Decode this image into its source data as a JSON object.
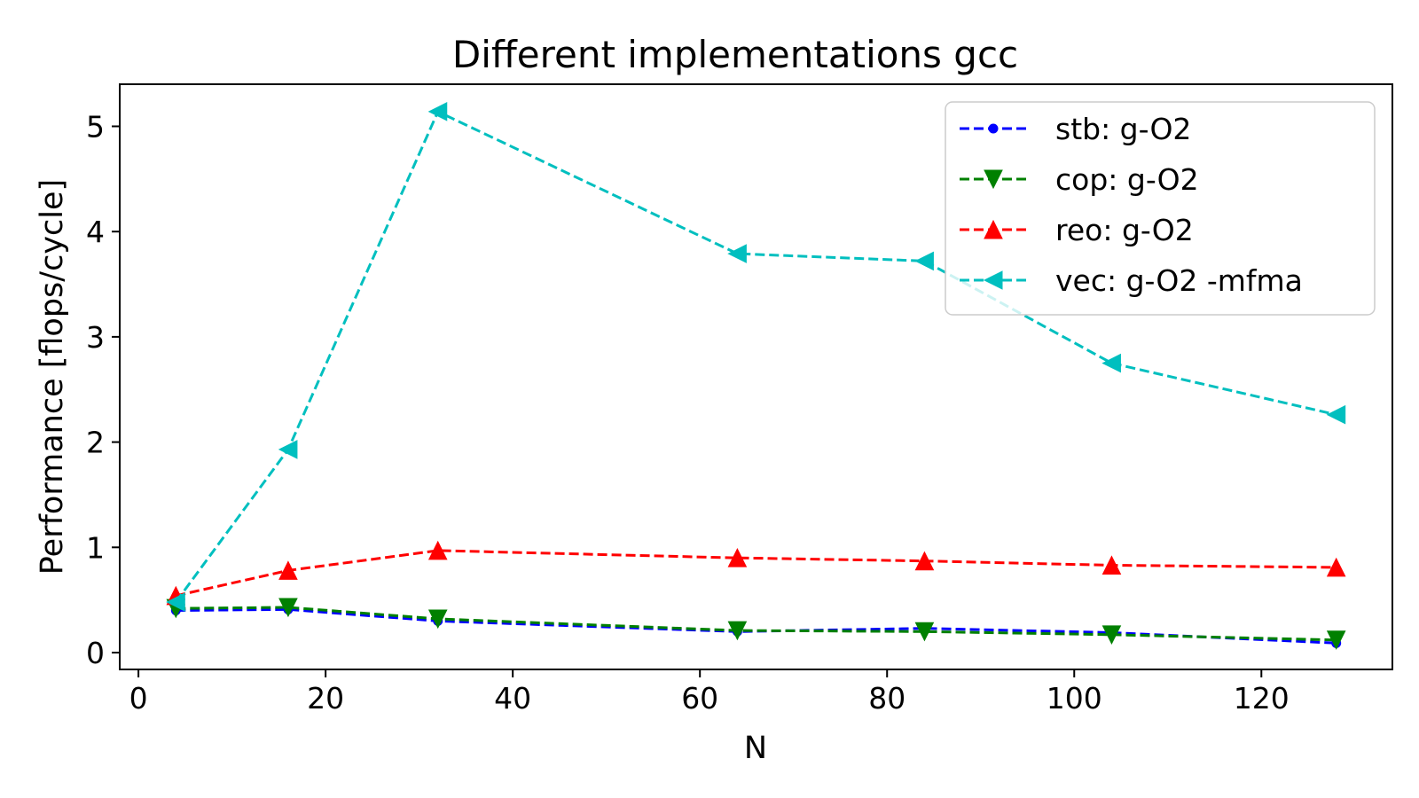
{
  "chart_data": {
    "type": "line",
    "title": "Different implementations gcc",
    "xlabel": "N",
    "ylabel": "Performance [flops/cycle]",
    "xlim": [
      -2,
      134
    ],
    "ylim": [
      -0.16,
      5.4
    ],
    "xticks": [
      0,
      20,
      40,
      60,
      80,
      100,
      120
    ],
    "yticks": [
      0,
      1,
      2,
      3,
      4,
      5
    ],
    "grid": false,
    "legend_placement": "top-right",
    "x": [
      4,
      16,
      32,
      64,
      84,
      104,
      128
    ],
    "series": [
      {
        "name": "stb:  g-O2",
        "color": "#0000ff",
        "marker": "point",
        "linestyle": "dashed",
        "values": [
          0.4,
          0.41,
          0.3,
          0.2,
          0.23,
          0.19,
          0.09
        ]
      },
      {
        "name": "cop:  g-O2",
        "color": "#008000",
        "marker": "triangle-down",
        "linestyle": "dashed",
        "values": [
          0.42,
          0.43,
          0.32,
          0.21,
          0.2,
          0.17,
          0.12
        ]
      },
      {
        "name": "reo:  g-O2",
        "color": "#ff0000",
        "marker": "triangle-up",
        "linestyle": "dashed",
        "values": [
          0.54,
          0.78,
          0.97,
          0.9,
          0.87,
          0.83,
          0.81
        ]
      },
      {
        "name": "vec:  g-O2 -mfma",
        "color": "#00bfbf",
        "marker": "triangle-left",
        "linestyle": "dashed",
        "values": [
          0.48,
          1.93,
          5.14,
          3.79,
          3.72,
          2.75,
          2.26
        ]
      }
    ]
  }
}
